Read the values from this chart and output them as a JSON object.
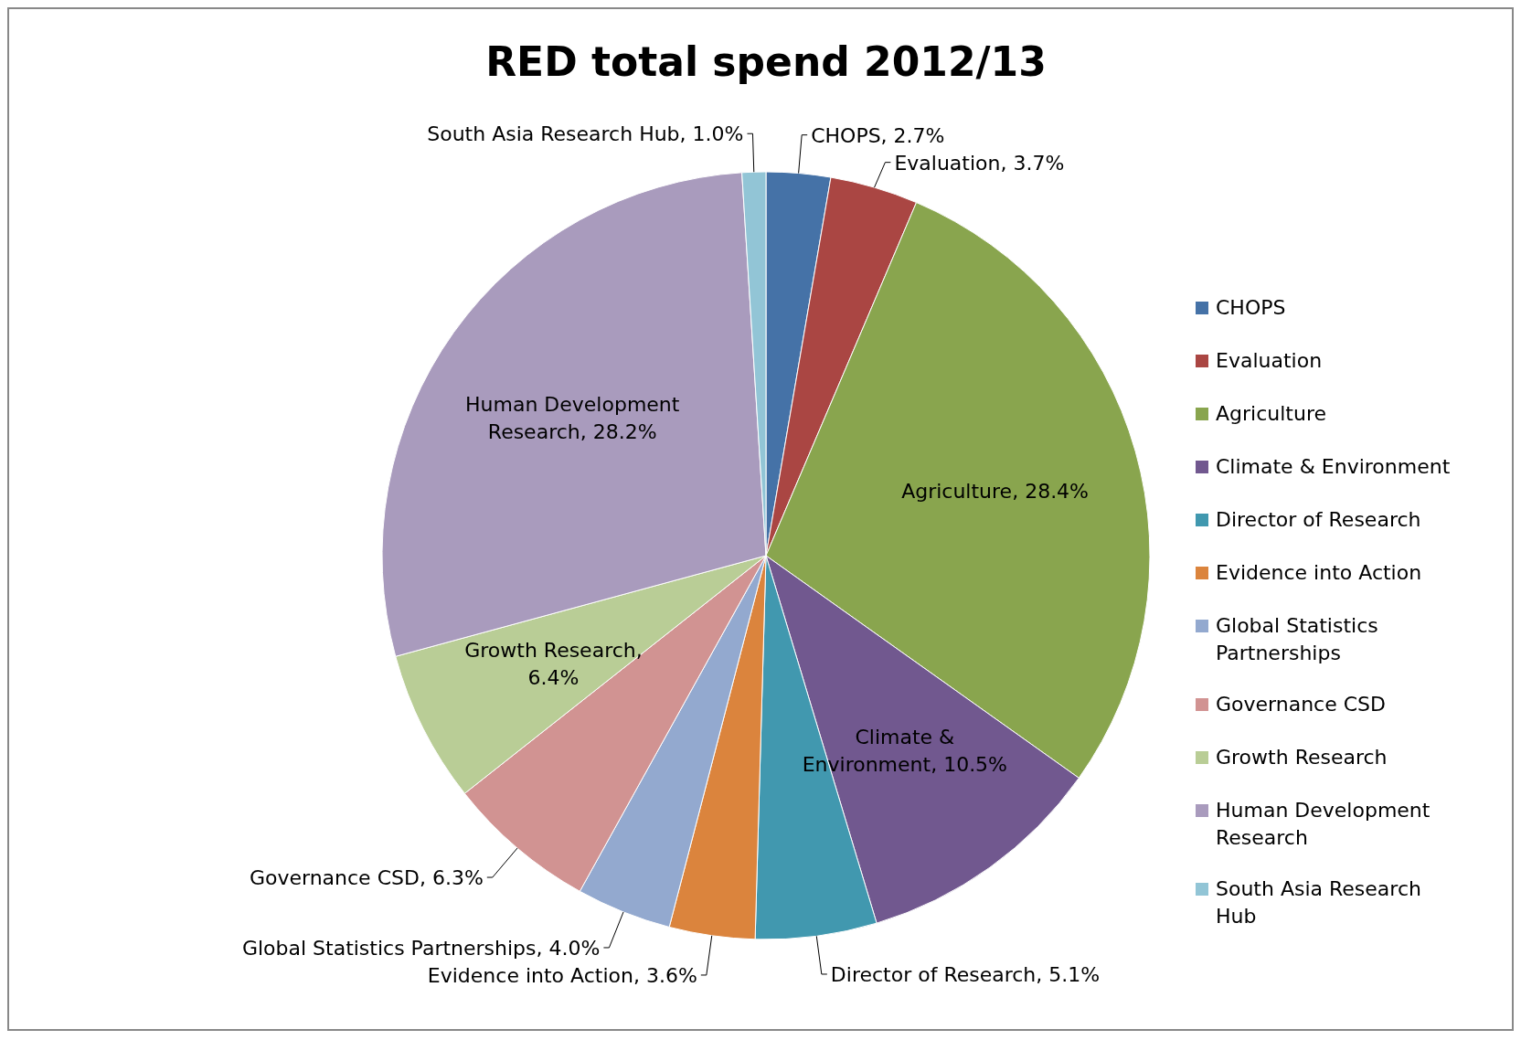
{
  "chart_data": {
    "type": "pie",
    "title": "RED total spend 2012/13",
    "categories": [
      "CHOPS",
      "Evaluation",
      "Agriculture",
      "Climate & Environment",
      "Director of Research",
      "Evidence into Action",
      "Global Statistics Partnerships",
      "Governance CSD",
      "Growth Research",
      "Human Development Research",
      "South Asia Research Hub"
    ],
    "values": [
      2.7,
      3.7,
      28.4,
      10.5,
      5.1,
      3.6,
      4.0,
      6.3,
      6.4,
      28.2,
      1.0
    ],
    "value_labels": [
      "CHOPS, 2.7%",
      "Evaluation, 3.7%",
      "Agriculture, 28.4%",
      "Climate & Environment, 10.5%",
      "Director of Research, 5.1%",
      "Evidence into Action, 3.6%",
      "Global Statistics Partnerships, 4.0%",
      "Governance CSD, 6.3%",
      "Growth Research, 6.4%",
      "Human Development Research, 28.2%",
      "South Asia Research Hub, 1.0%"
    ],
    "colors": [
      "#4572a7",
      "#aa4643",
      "#89a54e",
      "#71588f",
      "#4198af",
      "#db843d",
      "#93a9cf",
      "#d19392",
      "#b9cd96",
      "#a99bbd",
      "#92c5d6"
    ],
    "legend": "right"
  }
}
